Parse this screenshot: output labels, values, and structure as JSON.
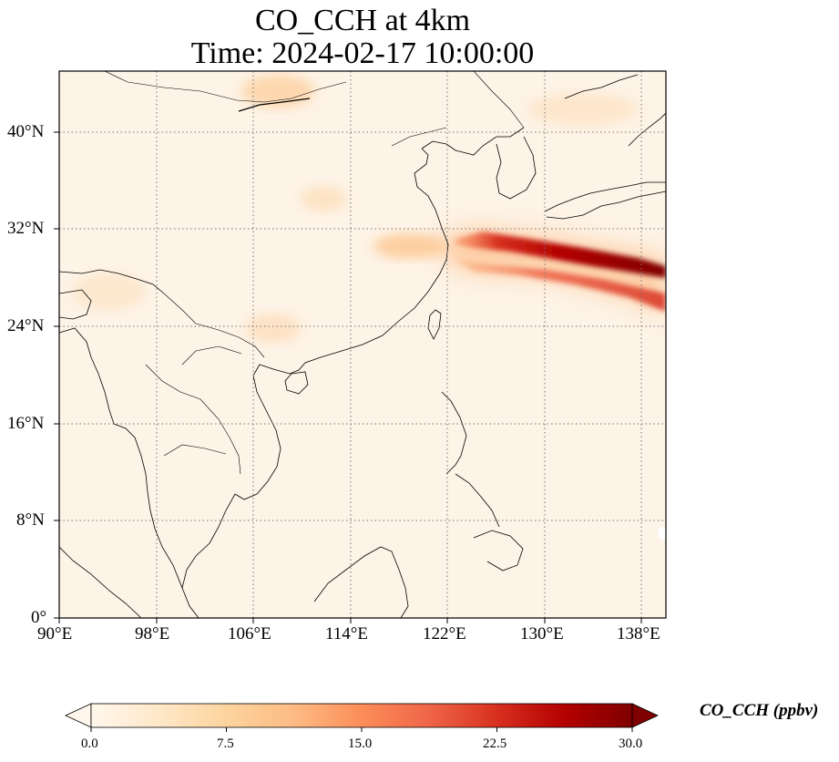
{
  "title": {
    "line1": "CO_CCH at 4km",
    "line2": "Time: 2024-02-17 10:00:00"
  },
  "axes": {
    "lon_ticks": [
      "90°E",
      "98°E",
      "106°E",
      "114°E",
      "122°E",
      "130°E",
      "138°E"
    ],
    "lat_ticks": [
      "0°",
      "8°N",
      "16°N",
      "24°N",
      "32°N",
      "40°N"
    ],
    "lon_range": [
      90,
      140
    ],
    "lat_range": [
      0,
      45
    ],
    "gridlines": "dotted"
  },
  "colorbar": {
    "label": "CO_CCH (ppbv)",
    "ticks": [
      "0.0",
      "7.5",
      "15.0",
      "22.5",
      "30.0"
    ],
    "range": [
      0,
      30
    ],
    "colormap": "OrRd",
    "extend": "both",
    "colors": [
      "#fff7ec",
      "#fee8c8",
      "#fdd49e",
      "#fdbb84",
      "#fc8d59",
      "#ef6548",
      "#d7301f",
      "#b30000",
      "#7f0000"
    ]
  },
  "field": {
    "background_level": "low (near 0 ppbv)",
    "plume": "high CO concentration band extending east from the east China coast (~31°N, 122°E) across the sea south of Japan to 140°E, peaking above 30 ppbv near 130–140°E"
  }
}
